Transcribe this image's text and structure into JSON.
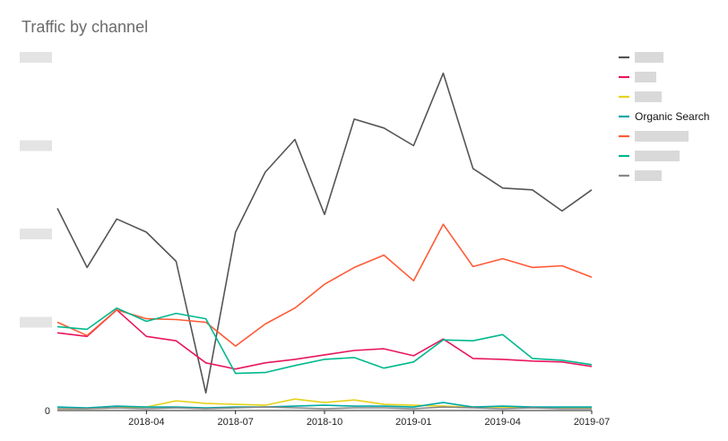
{
  "chart_data": {
    "type": "line",
    "title": "Traffic by channel",
    "xlabel": "",
    "ylabel": "",
    "x": [
      "2018-01",
      "2018-02",
      "2018-03",
      "2018-04",
      "2018-05",
      "2018-06",
      "2018-07",
      "2018-08",
      "2018-09",
      "2018-10",
      "2018-11",
      "2018-12",
      "2019-01",
      "2019-02",
      "2019-03",
      "2019-04",
      "2019-05",
      "2019-06",
      "2019-07"
    ],
    "x_ticks": [
      "2018-04",
      "2018-07",
      "2018-10",
      "2019-01",
      "2019-04",
      "2019-07"
    ],
    "y_ticks": [
      0,
      1000,
      2000,
      3000,
      4000
    ],
    "y_tick_labels": [
      "0",
      "",
      "",
      "",
      ""
    ],
    "ylim": [
      0,
      4000
    ],
    "grid": false,
    "legend_position": "right",
    "series": [
      {
        "name": "",
        "color": "#555555",
        "values": [
          2290,
          1620,
          2170,
          2020,
          1690,
          200,
          2020,
          2700,
          3070,
          2220,
          3300,
          3200,
          3000,
          3820,
          2740,
          2520,
          2500,
          2260,
          2500
        ]
      },
      {
        "name": "",
        "color": "#e8175d",
        "values": [
          880,
          840,
          1140,
          840,
          790,
          540,
          470,
          540,
          580,
          630,
          680,
          700,
          620,
          810,
          590,
          580,
          560,
          550,
          500
        ]
      },
      {
        "name": "",
        "color": "#e6d21a",
        "values": [
          20,
          20,
          30,
          40,
          110,
          80,
          70,
          60,
          130,
          90,
          120,
          70,
          60,
          50,
          40,
          40,
          30,
          30,
          30
        ]
      },
      {
        "name": "Organic Search",
        "color": "#00a8a8",
        "values": [
          40,
          30,
          50,
          40,
          40,
          30,
          40,
          40,
          50,
          60,
          50,
          50,
          40,
          90,
          40,
          50,
          40,
          40,
          40
        ]
      },
      {
        "name": "",
        "color": "#ff5a36",
        "values": [
          1000,
          850,
          1140,
          1040,
          1030,
          1000,
          730,
          980,
          1160,
          1430,
          1620,
          1760,
          1470,
          2110,
          1630,
          1720,
          1620,
          1640,
          1510
        ]
      },
      {
        "name": "",
        "color": "#00b88f",
        "values": [
          950,
          920,
          1160,
          1010,
          1100,
          1040,
          420,
          430,
          510,
          580,
          600,
          480,
          550,
          800,
          790,
          860,
          590,
          570,
          520
        ]
      },
      {
        "name": "",
        "color": "#888888",
        "values": [
          20,
          20,
          30,
          20,
          30,
          20,
          30,
          40,
          30,
          20,
          30,
          30,
          20,
          40,
          30,
          20,
          30,
          20,
          20
        ]
      }
    ]
  }
}
